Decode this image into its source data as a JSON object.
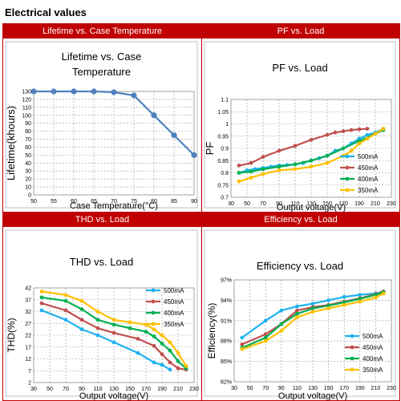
{
  "heading": "Electrical values",
  "panels": [
    {
      "header": "Lifetime vs. Case Temperature"
    },
    {
      "header": "PF vs. Load"
    },
    {
      "header": "THD vs. Load"
    },
    {
      "header": "Efficiency vs. Load"
    }
  ],
  "chart_data": [
    {
      "type": "line",
      "title": "Lifetime vs. Case Temperature",
      "xlabel": "Case Temperature(°C)",
      "ylabel": "Lifetime(khours)",
      "xlim": [
        50,
        90
      ],
      "ylim": [
        0,
        130
      ],
      "x_ticks": [
        50,
        55,
        60,
        65,
        70,
        75,
        80,
        85,
        90
      ],
      "y_ticks": [
        0,
        10,
        20,
        30,
        40,
        50,
        60,
        70,
        80,
        90,
        100,
        110,
        120,
        130
      ],
      "grid": "dashed",
      "series": [
        {
          "color": "#4f81bd",
          "marker": "circle",
          "x": [
            50,
            55,
            60,
            65,
            70,
            75,
            80,
            85,
            90
          ],
          "y": [
            130,
            130,
            130,
            130,
            129,
            125,
            100,
            75,
            50
          ]
        }
      ]
    },
    {
      "type": "line",
      "title": "PF vs. Load",
      "xlabel": "Output voltage(V)",
      "ylabel": "PF",
      "xlim": [
        30,
        230
      ],
      "ylim": [
        0.7,
        1.1
      ],
      "x_ticks": [
        30,
        50,
        70,
        90,
        110,
        130,
        150,
        170,
        190,
        210,
        230
      ],
      "y_ticks": [
        "0.7",
        "0.75",
        "0.8",
        "0.85",
        "0.9",
        "0.95",
        "1",
        "1.05",
        "1.1"
      ],
      "grid": "dashed",
      "legend": "right",
      "series": [
        {
          "name": "500mA",
          "color": "#1fb2f0",
          "x": [
            40,
            50,
            60,
            70,
            80,
            90,
            100,
            110,
            120,
            130,
            140,
            150,
            160,
            170,
            180,
            190,
            200,
            210,
            220
          ],
          "y": [
            0.8,
            0.81,
            0.815,
            0.82,
            0.825,
            0.83,
            0.832,
            0.835,
            0.84,
            0.85,
            0.86,
            0.87,
            0.89,
            0.9,
            0.92,
            0.94,
            0.955,
            0.965,
            0.98
          ]
        },
        {
          "name": "450mA",
          "color": "#c0504d",
          "x": [
            40,
            55,
            70,
            90,
            110,
            130,
            150,
            160,
            170,
            180,
            190,
            200
          ],
          "y": [
            0.83,
            0.84,
            0.865,
            0.89,
            0.91,
            0.935,
            0.955,
            0.965,
            0.97,
            0.975,
            0.978,
            0.98
          ]
        },
        {
          "name": "400mA",
          "color": "#00b050",
          "x": [
            40,
            55,
            70,
            90,
            110,
            130,
            150,
            170,
            190,
            210,
            220
          ],
          "y": [
            0.8,
            0.805,
            0.815,
            0.825,
            0.835,
            0.85,
            0.87,
            0.9,
            0.93,
            0.96,
            0.975
          ]
        },
        {
          "name": "350mA",
          "color": "#ffc000",
          "x": [
            40,
            55,
            70,
            90,
            110,
            130,
            150,
            170,
            180,
            190,
            200,
            210,
            220
          ],
          "y": [
            0.765,
            0.78,
            0.795,
            0.81,
            0.815,
            0.825,
            0.84,
            0.87,
            0.89,
            0.92,
            0.94,
            0.96,
            0.98
          ]
        }
      ]
    },
    {
      "type": "line",
      "title": "THD vs. Load",
      "xlabel": "Output voltage(V)",
      "ylabel": "THD(%)",
      "xlim": [
        30,
        230
      ],
      "ylim": [
        2,
        42
      ],
      "x_ticks": [
        30,
        50,
        70,
        90,
        110,
        130,
        150,
        170,
        190,
        210,
        230
      ],
      "y_ticks": [
        2,
        7,
        12,
        17,
        22,
        27,
        32,
        37,
        42
      ],
      "grid": "dashed",
      "legend": "top-right",
      "series": [
        {
          "name": "500mA",
          "color": "#1fb2f0",
          "x": [
            40,
            70,
            90,
            110,
            130,
            160,
            180,
            190,
            200
          ],
          "y": [
            32.5,
            28.5,
            24.5,
            22,
            19,
            14.5,
            10.5,
            9.5,
            7.5
          ]
        },
        {
          "name": "450mA",
          "color": "#c0504d",
          "x": [
            40,
            70,
            90,
            110,
            130,
            160,
            180,
            190,
            200,
            210,
            220
          ],
          "y": [
            35.5,
            32.5,
            28.5,
            25,
            23,
            20.5,
            17.5,
            14,
            10.5,
            8,
            7.5
          ]
        },
        {
          "name": "400mA",
          "color": "#00b050",
          "x": [
            40,
            70,
            90,
            110,
            130,
            150,
            170,
            180,
            190,
            200,
            210,
            220
          ],
          "y": [
            38,
            36.5,
            33,
            28.5,
            26.5,
            25,
            23.5,
            21.5,
            18.5,
            15.5,
            11,
            8
          ]
        },
        {
          "name": "350mA",
          "color": "#ffc000",
          "x": [
            40,
            70,
            90,
            110,
            130,
            150,
            170,
            180,
            190,
            200,
            210,
            220
          ],
          "y": [
            40.5,
            39,
            36.5,
            32,
            28.5,
            27.5,
            26.5,
            24.5,
            22,
            19,
            14.5,
            9
          ]
        }
      ]
    },
    {
      "type": "line",
      "title": "Efficiency vs. Load",
      "xlabel": "Output voltage(V)",
      "ylabel": "Efficiency(%)",
      "xlim": [
        30,
        230
      ],
      "ylim": [
        82,
        97
      ],
      "x_ticks": [
        30,
        50,
        70,
        90,
        110,
        130,
        150,
        170,
        190,
        210,
        230
      ],
      "y_ticks": [
        "82%",
        "85%",
        "88%",
        "91%",
        "94%",
        "97%"
      ],
      "y_tick_values": [
        82,
        85,
        88,
        91,
        94,
        97
      ],
      "grid": "dashed",
      "legend": "right",
      "series": [
        {
          "name": "500mA",
          "color": "#1fb2f0",
          "x": [
            40,
            70,
            90,
            110,
            130,
            150,
            170,
            190,
            210,
            220
          ],
          "y": [
            88.5,
            91,
            92.5,
            93.1,
            93.5,
            94,
            94.5,
            94.8,
            95,
            95.3
          ]
        },
        {
          "name": "450mA",
          "color": "#c0504d",
          "x": [
            40,
            70,
            90,
            110,
            130,
            150,
            170,
            190,
            210,
            220
          ],
          "y": [
            87.5,
            89,
            90.5,
            92.5,
            93,
            93.3,
            93.8,
            94.3,
            94.9,
            95.3
          ]
        },
        {
          "name": "400mA",
          "color": "#00b050",
          "x": [
            40,
            70,
            90,
            110,
            130,
            150,
            170,
            190,
            210,
            220
          ],
          "y": [
            87,
            88.5,
            90.5,
            92,
            92.8,
            93.2,
            93.7,
            94.2,
            94.8,
            95.2
          ]
        },
        {
          "name": "350mA",
          "color": "#ffc000",
          "x": [
            40,
            70,
            90,
            110,
            130,
            150,
            170,
            190,
            210,
            220
          ],
          "y": [
            86.8,
            88,
            89.5,
            91.5,
            92.3,
            92.8,
            93.3,
            93.8,
            94.4,
            95
          ]
        }
      ]
    }
  ]
}
